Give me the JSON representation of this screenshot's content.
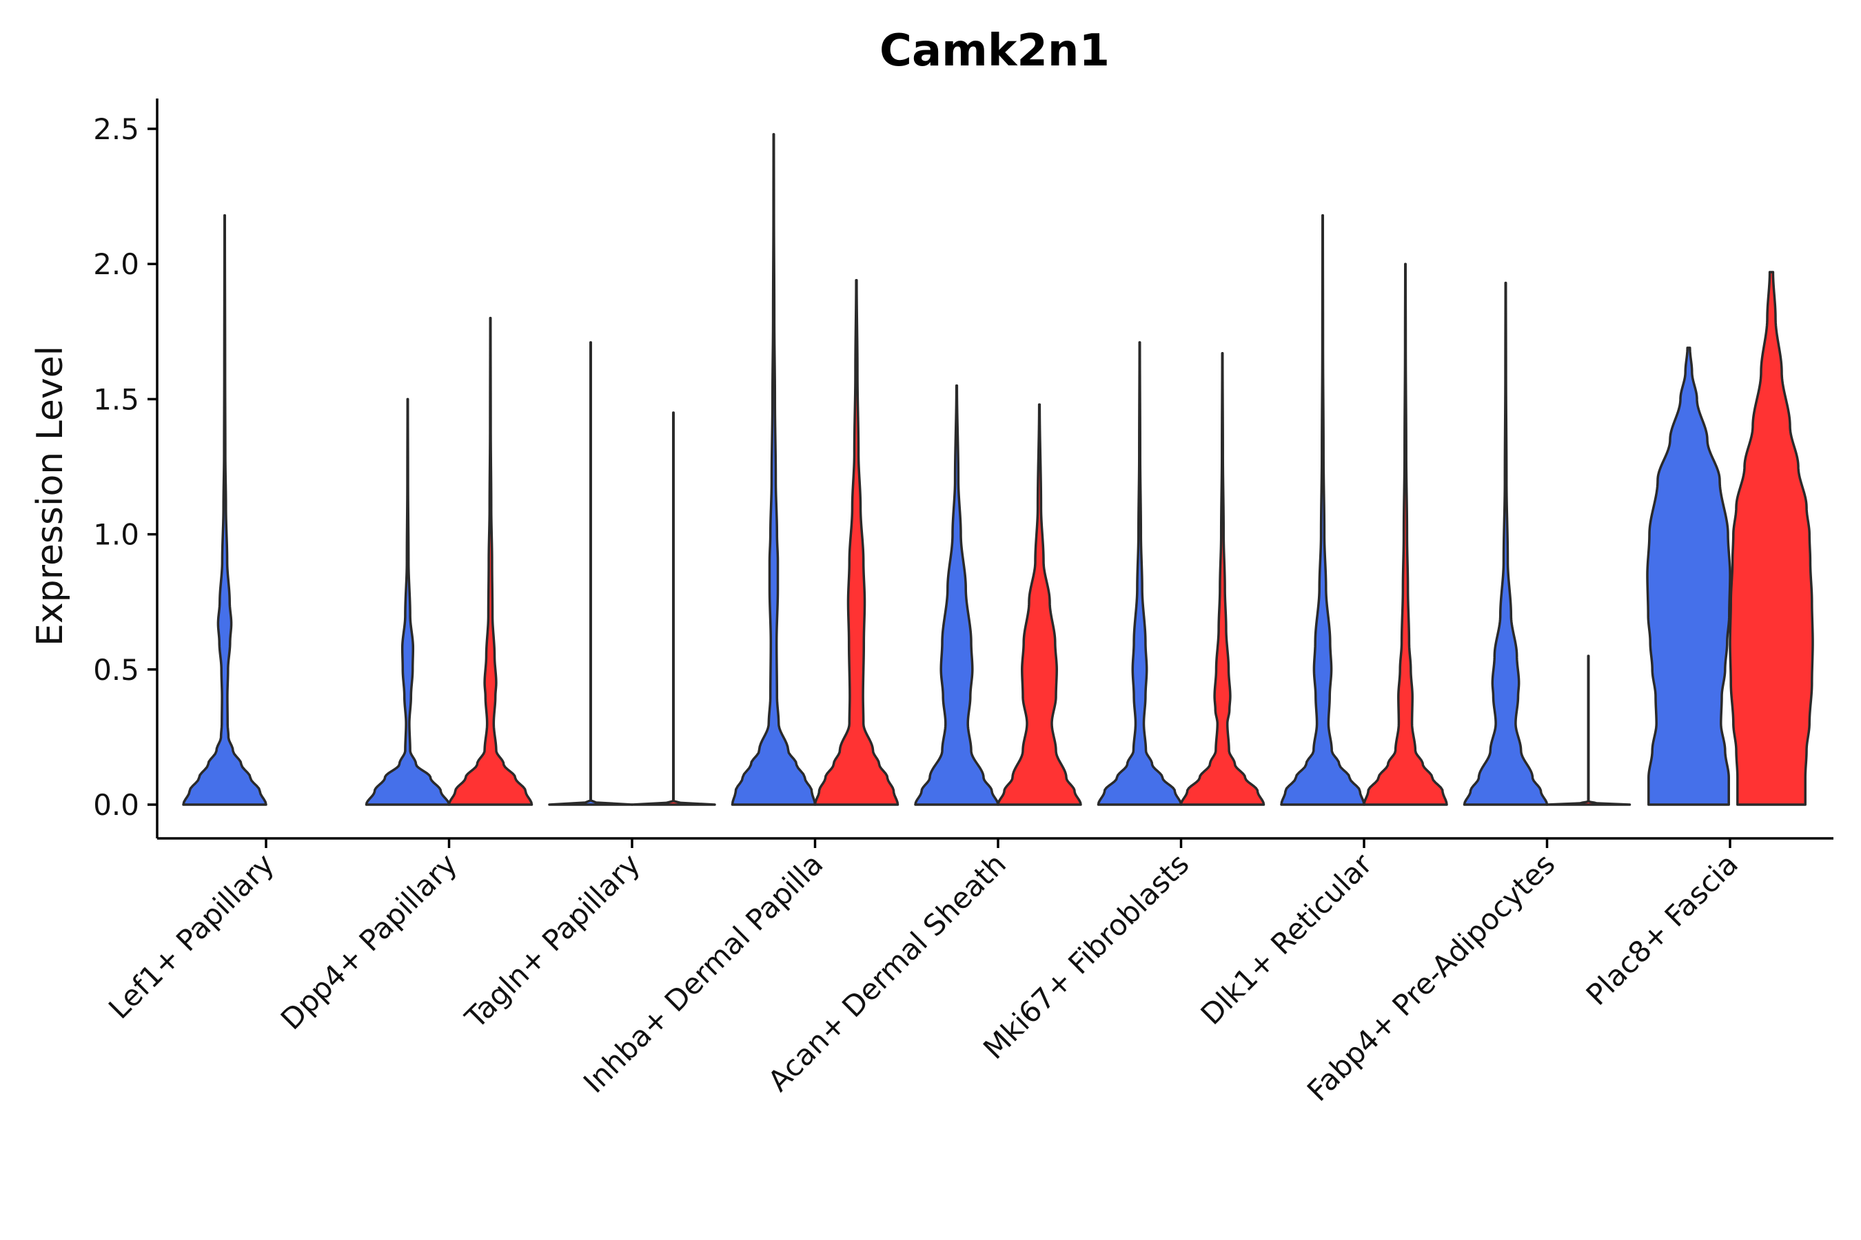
{
  "chart_data": {
    "type": "violin",
    "title": "Camk2n1",
    "xlabel": "",
    "ylabel": "Expression Level",
    "ylim": [
      -0.12,
      2.62
    ],
    "yticks": [
      "0.0",
      "0.5",
      "1.0",
      "1.5",
      "2.0",
      "2.5"
    ],
    "categories": [
      "Lef1+ Papillary",
      "Dpp4+ Papillary",
      "Tagln+ Papillary",
      "Inhba+ Dermal Papilla",
      "Acan+ Dermal Sheath",
      "Mki67+ Fibroblasts",
      "Dlk1+ Reticular",
      "Fabp4+ Pre-Adipocytes",
      "Plac8+ Fascia"
    ],
    "series_colors": {
      "blue": "#4570EA",
      "red": "#FF3333"
    },
    "violins": [
      {
        "category": "Lef1+ Papillary",
        "color": "blue",
        "max": 2.18,
        "profile": [
          [
            0.0,
            1.0
          ],
          [
            0.05,
            0.85
          ],
          [
            0.1,
            0.62
          ],
          [
            0.15,
            0.4
          ],
          [
            0.2,
            0.2
          ],
          [
            0.25,
            0.09
          ],
          [
            0.3,
            0.07
          ],
          [
            0.4,
            0.065
          ],
          [
            0.5,
            0.08
          ],
          [
            0.6,
            0.13
          ],
          [
            0.67,
            0.16
          ],
          [
            0.75,
            0.12
          ],
          [
            0.9,
            0.06
          ],
          [
            1.1,
            0.03
          ],
          [
            1.3,
            0.015
          ],
          [
            1.6,
            0.01
          ],
          [
            2.18,
            0.004
          ]
        ]
      },
      {
        "category": "Dpp4+ Papillary",
        "color": "blue",
        "max": 1.5,
        "profile": [
          [
            0.0,
            1.0
          ],
          [
            0.05,
            0.8
          ],
          [
            0.1,
            0.55
          ],
          [
            0.15,
            0.2
          ],
          [
            0.2,
            0.06
          ],
          [
            0.3,
            0.04
          ],
          [
            0.4,
            0.08
          ],
          [
            0.5,
            0.12
          ],
          [
            0.58,
            0.13
          ],
          [
            0.7,
            0.06
          ],
          [
            0.9,
            0.02
          ],
          [
            1.2,
            0.008
          ],
          [
            1.5,
            0.004
          ]
        ]
      },
      {
        "category": "Dpp4+ Papillary",
        "color": "red",
        "max": 1.8,
        "profile": [
          [
            0.0,
            1.0
          ],
          [
            0.05,
            0.85
          ],
          [
            0.1,
            0.6
          ],
          [
            0.15,
            0.32
          ],
          [
            0.2,
            0.14
          ],
          [
            0.3,
            0.08
          ],
          [
            0.4,
            0.12
          ],
          [
            0.45,
            0.14
          ],
          [
            0.55,
            0.1
          ],
          [
            0.7,
            0.05
          ],
          [
            0.9,
            0.04
          ],
          [
            1.1,
            0.02
          ],
          [
            1.4,
            0.008
          ],
          [
            1.8,
            0.004
          ]
        ]
      },
      {
        "category": "Tagln+ Papillary",
        "color": "blue",
        "max": 1.71,
        "profile": [
          [
            0.0,
            1.0
          ],
          [
            0.005,
            0.2
          ],
          [
            0.012,
            0.004
          ],
          [
            1.71,
            0.004
          ]
        ]
      },
      {
        "category": "Tagln+ Papillary",
        "color": "red",
        "max": 1.45,
        "profile": [
          [
            0.0,
            1.0
          ],
          [
            0.005,
            0.2
          ],
          [
            0.012,
            0.004
          ],
          [
            1.45,
            0.004
          ]
        ]
      },
      {
        "category": "Inhba+ Dermal Papilla",
        "color": "blue",
        "max": 2.48,
        "profile": [
          [
            0.0,
            1.0
          ],
          [
            0.05,
            0.92
          ],
          [
            0.1,
            0.75
          ],
          [
            0.15,
            0.55
          ],
          [
            0.2,
            0.35
          ],
          [
            0.3,
            0.12
          ],
          [
            0.4,
            0.08
          ],
          [
            0.6,
            0.07
          ],
          [
            0.8,
            0.1
          ],
          [
            0.9,
            0.1
          ],
          [
            1.0,
            0.08
          ],
          [
            1.2,
            0.05
          ],
          [
            1.5,
            0.03
          ],
          [
            1.8,
            0.015
          ],
          [
            2.2,
            0.006
          ],
          [
            2.48,
            0.004
          ]
        ]
      },
      {
        "category": "Inhba+ Dermal Papilla",
        "color": "red",
        "max": 1.94,
        "profile": [
          [
            0.0,
            1.0
          ],
          [
            0.05,
            0.9
          ],
          [
            0.1,
            0.75
          ],
          [
            0.15,
            0.55
          ],
          [
            0.2,
            0.4
          ],
          [
            0.3,
            0.17
          ],
          [
            0.4,
            0.16
          ],
          [
            0.6,
            0.18
          ],
          [
            0.75,
            0.2
          ],
          [
            0.9,
            0.17
          ],
          [
            1.1,
            0.1
          ],
          [
            1.3,
            0.05
          ],
          [
            1.6,
            0.025
          ],
          [
            1.94,
            0.006
          ]
        ]
      },
      {
        "category": "Acan+ Dermal Sheath",
        "color": "blue",
        "max": 1.55,
        "profile": [
          [
            0.0,
            1.0
          ],
          [
            0.05,
            0.85
          ],
          [
            0.1,
            0.65
          ],
          [
            0.2,
            0.35
          ],
          [
            0.3,
            0.27
          ],
          [
            0.4,
            0.33
          ],
          [
            0.5,
            0.38
          ],
          [
            0.6,
            0.35
          ],
          [
            0.8,
            0.22
          ],
          [
            1.0,
            0.1
          ],
          [
            1.2,
            0.04
          ],
          [
            1.55,
            0.006
          ]
        ]
      },
      {
        "category": "Acan+ Dermal Sheath",
        "color": "red",
        "max": 1.48,
        "profile": [
          [
            0.0,
            1.0
          ],
          [
            0.05,
            0.85
          ],
          [
            0.1,
            0.65
          ],
          [
            0.2,
            0.4
          ],
          [
            0.3,
            0.3
          ],
          [
            0.4,
            0.4
          ],
          [
            0.5,
            0.42
          ],
          [
            0.6,
            0.38
          ],
          [
            0.75,
            0.25
          ],
          [
            0.9,
            0.1
          ],
          [
            1.1,
            0.04
          ],
          [
            1.48,
            0.006
          ]
        ]
      },
      {
        "category": "Mki67+ Fibroblasts",
        "color": "blue",
        "max": 1.71,
        "profile": [
          [
            0.0,
            1.0
          ],
          [
            0.05,
            0.85
          ],
          [
            0.1,
            0.55
          ],
          [
            0.15,
            0.3
          ],
          [
            0.2,
            0.15
          ],
          [
            0.3,
            0.1
          ],
          [
            0.4,
            0.14
          ],
          [
            0.5,
            0.17
          ],
          [
            0.6,
            0.14
          ],
          [
            0.8,
            0.06
          ],
          [
            1.0,
            0.03
          ],
          [
            1.3,
            0.012
          ],
          [
            1.71,
            0.004
          ]
        ]
      },
      {
        "category": "Mki67+ Fibroblasts",
        "color": "red",
        "max": 1.67,
        "profile": [
          [
            0.0,
            1.0
          ],
          [
            0.05,
            0.85
          ],
          [
            0.1,
            0.55
          ],
          [
            0.15,
            0.3
          ],
          [
            0.2,
            0.16
          ],
          [
            0.3,
            0.12
          ],
          [
            0.35,
            0.17
          ],
          [
            0.4,
            0.19
          ],
          [
            0.5,
            0.15
          ],
          [
            0.65,
            0.09
          ],
          [
            0.8,
            0.06
          ],
          [
            1.0,
            0.03
          ],
          [
            1.3,
            0.012
          ],
          [
            1.67,
            0.004
          ]
        ]
      },
      {
        "category": "Dlk1+ Reticular",
        "color": "blue",
        "max": 2.18,
        "profile": [
          [
            0.0,
            1.0
          ],
          [
            0.05,
            0.9
          ],
          [
            0.1,
            0.65
          ],
          [
            0.15,
            0.4
          ],
          [
            0.2,
            0.22
          ],
          [
            0.3,
            0.14
          ],
          [
            0.4,
            0.17
          ],
          [
            0.5,
            0.21
          ],
          [
            0.6,
            0.18
          ],
          [
            0.8,
            0.08
          ],
          [
            1.0,
            0.04
          ],
          [
            1.3,
            0.02
          ],
          [
            1.7,
            0.008
          ],
          [
            2.18,
            0.004
          ]
        ]
      },
      {
        "category": "Dlk1+ Reticular",
        "color": "red",
        "max": 2.0,
        "profile": [
          [
            0.0,
            1.0
          ],
          [
            0.05,
            0.9
          ],
          [
            0.1,
            0.65
          ],
          [
            0.15,
            0.42
          ],
          [
            0.2,
            0.24
          ],
          [
            0.3,
            0.16
          ],
          [
            0.4,
            0.17
          ],
          [
            0.5,
            0.13
          ],
          [
            0.6,
            0.09
          ],
          [
            0.8,
            0.06
          ],
          [
            1.0,
            0.04
          ],
          [
            1.3,
            0.02
          ],
          [
            1.7,
            0.008
          ],
          [
            2.0,
            0.004
          ]
        ]
      },
      {
        "category": "Fabp4+ Pre-Adipocytes",
        "color": "blue",
        "max": 1.93,
        "profile": [
          [
            0.0,
            1.0
          ],
          [
            0.05,
            0.85
          ],
          [
            0.1,
            0.65
          ],
          [
            0.2,
            0.37
          ],
          [
            0.3,
            0.24
          ],
          [
            0.4,
            0.3
          ],
          [
            0.45,
            0.32
          ],
          [
            0.55,
            0.27
          ],
          [
            0.7,
            0.13
          ],
          [
            0.9,
            0.05
          ],
          [
            1.2,
            0.02
          ],
          [
            1.6,
            0.008
          ],
          [
            1.93,
            0.004
          ]
        ]
      },
      {
        "category": "Fabp4+ Pre-Adipocytes",
        "color": "red",
        "max": 0.55,
        "profile": [
          [
            0.0,
            1.0
          ],
          [
            0.005,
            0.2
          ],
          [
            0.012,
            0.004
          ],
          [
            0.55,
            0.004
          ]
        ]
      },
      {
        "category": "Plac8+ Fascia",
        "color": "blue",
        "max": 1.69,
        "profile": [
          [
            0.0,
            0.97
          ],
          [
            0.1,
            0.97
          ],
          [
            0.2,
            0.88
          ],
          [
            0.3,
            0.78
          ],
          [
            0.4,
            0.8
          ],
          [
            0.5,
            0.88
          ],
          [
            0.6,
            0.93
          ],
          [
            0.7,
            0.98
          ],
          [
            0.85,
            1.0
          ],
          [
            1.0,
            0.95
          ],
          [
            1.2,
            0.75
          ],
          [
            1.35,
            0.45
          ],
          [
            1.5,
            0.2
          ],
          [
            1.6,
            0.08
          ],
          [
            1.69,
            0.03
          ]
        ]
      },
      {
        "category": "Plac8+ Fascia",
        "color": "red",
        "max": 1.97,
        "profile": [
          [
            0.0,
            0.82
          ],
          [
            0.1,
            0.82
          ],
          [
            0.2,
            0.85
          ],
          [
            0.3,
            0.92
          ],
          [
            0.45,
            0.98
          ],
          [
            0.6,
            1.0
          ],
          [
            0.75,
            0.98
          ],
          [
            0.9,
            0.94
          ],
          [
            1.0,
            0.92
          ],
          [
            1.1,
            0.85
          ],
          [
            1.25,
            0.65
          ],
          [
            1.4,
            0.45
          ],
          [
            1.6,
            0.25
          ],
          [
            1.8,
            0.1
          ],
          [
            1.97,
            0.04
          ]
        ]
      }
    ]
  }
}
